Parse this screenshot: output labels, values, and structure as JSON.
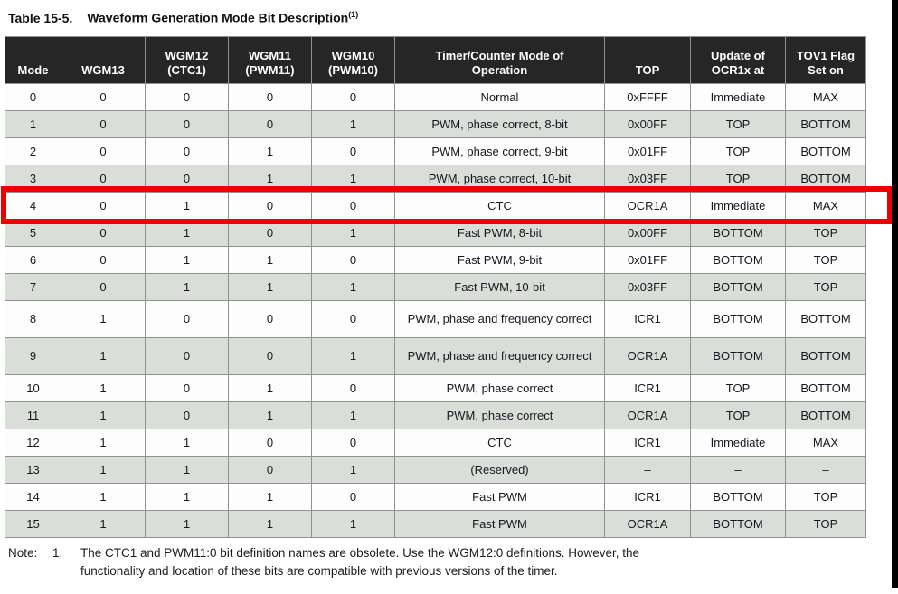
{
  "title": {
    "label": "Table 15-5.",
    "text": "Waveform Generation Mode Bit Description",
    "superscript": "(1)"
  },
  "table": {
    "headers": [
      "Mode",
      "WGM13",
      "WGM12\n(CTC1)",
      "WGM11\n(PWM11)",
      "WGM10\n(PWM10)",
      "Timer/Counter Mode of\nOperation",
      "TOP",
      "Update of\nOCR1x at",
      "TOV1 Flag\nSet on"
    ],
    "rows": [
      [
        "0",
        "0",
        "0",
        "0",
        "0",
        "Normal",
        "0xFFFF",
        "Immediate",
        "MAX"
      ],
      [
        "1",
        "0",
        "0",
        "0",
        "1",
        "PWM, phase correct, 8-bit",
        "0x00FF",
        "TOP",
        "BOTTOM"
      ],
      [
        "2",
        "0",
        "0",
        "1",
        "0",
        "PWM, phase correct, 9-bit",
        "0x01FF",
        "TOP",
        "BOTTOM"
      ],
      [
        "3",
        "0",
        "0",
        "1",
        "1",
        "PWM, phase correct, 10-bit",
        "0x03FF",
        "TOP",
        "BOTTOM"
      ],
      [
        "4",
        "0",
        "1",
        "0",
        "0",
        "CTC",
        "OCR1A",
        "Immediate",
        "MAX"
      ],
      [
        "5",
        "0",
        "1",
        "0",
        "1",
        "Fast PWM, 8-bit",
        "0x00FF",
        "BOTTOM",
        "TOP"
      ],
      [
        "6",
        "0",
        "1",
        "1",
        "0",
        "Fast PWM, 9-bit",
        "0x01FF",
        "BOTTOM",
        "TOP"
      ],
      [
        "7",
        "0",
        "1",
        "1",
        "1",
        "Fast PWM, 10-bit",
        "0x03FF",
        "BOTTOM",
        "TOP"
      ],
      [
        "8",
        "1",
        "0",
        "0",
        "0",
        "PWM, phase and frequency correct",
        "ICR1",
        "BOTTOM",
        "BOTTOM"
      ],
      [
        "9",
        "1",
        "0",
        "0",
        "1",
        "PWM, phase and frequency correct",
        "OCR1A",
        "BOTTOM",
        "BOTTOM"
      ],
      [
        "10",
        "1",
        "0",
        "1",
        "0",
        "PWM, phase correct",
        "ICR1",
        "TOP",
        "BOTTOM"
      ],
      [
        "11",
        "1",
        "0",
        "1",
        "1",
        "PWM, phase correct",
        "OCR1A",
        "TOP",
        "BOTTOM"
      ],
      [
        "12",
        "1",
        "1",
        "0",
        "0",
        "CTC",
        "ICR1",
        "Immediate",
        "MAX"
      ],
      [
        "13",
        "1",
        "1",
        "0",
        "1",
        "(Reserved)",
        "–",
        "–",
        "–"
      ],
      [
        "14",
        "1",
        "1",
        "1",
        "0",
        "Fast PWM",
        "ICR1",
        "BOTTOM",
        "TOP"
      ],
      [
        "15",
        "1",
        "1",
        "1",
        "1",
        "Fast PWM",
        "OCR1A",
        "BOTTOM",
        "TOP"
      ]
    ],
    "tall_rows": [
      8,
      9
    ]
  },
  "highlight": {
    "row_index": 4,
    "color": "#ee0000"
  },
  "note": {
    "label": "Note:",
    "number": "1.",
    "lines": [
      "The CTC1 and PWM11:0 bit definition names are obsolete. Use the WGM12:0 definitions. However, the",
      "functionality and location of these bits are compatible with previous versions of the timer."
    ]
  },
  "colors": {
    "header_bg": "#262626",
    "row_alt": "#d9ded8",
    "border": "#919191",
    "highlight_red": "#ee0000"
  }
}
